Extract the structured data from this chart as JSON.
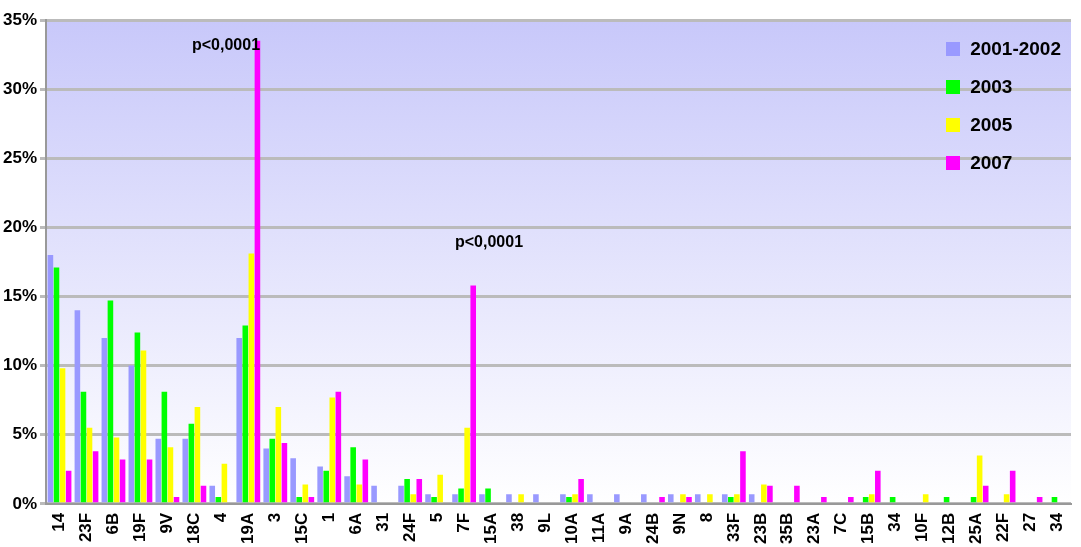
{
  "chart_data": {
    "type": "bar",
    "categories": [
      "14",
      "23F",
      "6B",
      "19F",
      "9V",
      "18C",
      "4",
      "19A",
      "3",
      "15C",
      "1",
      "6A",
      "31",
      "24F",
      "5",
      "7F",
      "15A",
      "38",
      "9L",
      "10A",
      "11A",
      "9A",
      "24B",
      "9N",
      "8",
      "33F",
      "23B",
      "35B",
      "23A",
      "7C",
      "15B",
      "34",
      "10F",
      "12B",
      "25A",
      "22F",
      "27",
      "34"
    ],
    "series": [
      {
        "name": "2001-2002",
        "color": "#9999ff",
        "values": [
          18,
          14,
          12,
          10,
          4.7,
          4.7,
          1.3,
          12,
          4,
          3.3,
          2.7,
          2,
          1.3,
          1.3,
          0.7,
          0.7,
          0.7,
          0.7,
          0.7,
          0.7,
          0.7,
          0.7,
          0.7,
          0.7,
          0.7,
          0.7,
          0.7,
          null,
          null,
          null,
          null,
          null,
          null,
          null,
          null,
          null,
          null,
          null
        ]
      },
      {
        "name": "2003",
        "color": "#00ff00",
        "values": [
          17.1,
          8.1,
          14.7,
          12.4,
          8.1,
          5.8,
          0.5,
          12.9,
          4.7,
          0.5,
          2.4,
          4.1,
          null,
          1.8,
          0.5,
          1.1,
          1.1,
          null,
          null,
          0.5,
          null,
          null,
          null,
          null,
          null,
          0.5,
          null,
          null,
          null,
          null,
          0.5,
          0.5,
          null,
          0.5,
          0.5,
          null,
          null,
          0.5
        ]
      },
      {
        "name": "2005",
        "color": "#ffff00",
        "values": [
          9.8,
          5.5,
          4.8,
          11.1,
          4.1,
          7,
          2.9,
          18.1,
          7,
          1.4,
          7.7,
          1.4,
          null,
          0.7,
          2.1,
          5.5,
          null,
          0.7,
          null,
          0.7,
          null,
          null,
          null,
          0.7,
          0.7,
          0.7,
          1.4,
          null,
          null,
          null,
          0.7,
          null,
          0.7,
          null,
          3.5,
          0.7,
          null,
          null
        ]
      },
      {
        "name": "2007",
        "color": "#ff00ff",
        "values": [
          2.4,
          3.8,
          3.2,
          3.2,
          0.5,
          1.3,
          null,
          33.5,
          4.4,
          0.5,
          8.1,
          3.2,
          null,
          1.8,
          null,
          15.8,
          null,
          null,
          null,
          1.8,
          null,
          null,
          0.5,
          0.5,
          null,
          3.8,
          1.3,
          1.3,
          0.5,
          0.5,
          2.4,
          null,
          null,
          null,
          1.3,
          2.4,
          0.5,
          null
        ]
      }
    ],
    "ylim": [
      0,
      35
    ],
    "yticks": [
      {
        "value": 0,
        "label": "0%"
      },
      {
        "value": 5,
        "label": "5%"
      },
      {
        "value": 10,
        "label": "10%"
      },
      {
        "value": 15,
        "label": "15%"
      },
      {
        "value": 20,
        "label": "20%"
      },
      {
        "value": 25,
        "label": "25%"
      },
      {
        "value": 30,
        "label": "30%"
      },
      {
        "value": 35,
        "label": "35%"
      }
    ],
    "grid": "y",
    "legend": "top right",
    "annotations": [
      "p<0,0001",
      "p<0,0001"
    ]
  }
}
